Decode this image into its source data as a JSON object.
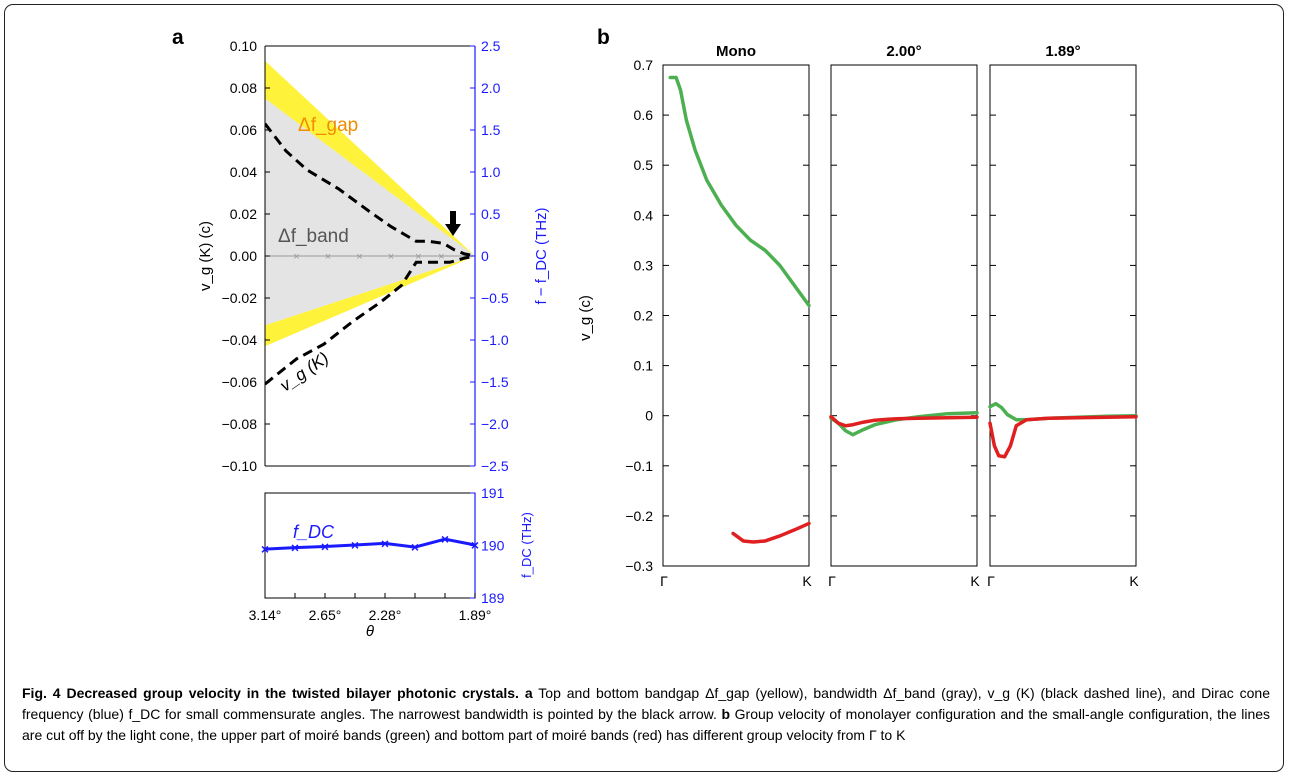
{
  "chart_data": [
    {
      "id": "a-top",
      "type": "line",
      "panel_label": "a",
      "ylabel_left": "v_g (K) (c)",
      "ylabel_right": "f − f_DC (THz)",
      "ylim_left": [
        -0.1,
        0.1
      ],
      "ylim_right": [
        -2.5,
        2.5
      ],
      "yticks_left": [
        "0.10",
        "0.08",
        "0.06",
        "0.04",
        "0.02",
        "0.00",
        "−0.02",
        "−0.04",
        "−0.06",
        "−0.08",
        "−0.10"
      ],
      "yticks_right": [
        "2.5",
        "2.0",
        "1.5",
        "1.0",
        "0.5",
        "0",
        "−0.5",
        "−1.0",
        "−1.5",
        "−2.0",
        "−2.5"
      ],
      "annotations": {
        "gap": "Δf_gap",
        "band": "Δf_band",
        "vg": "v_g (K)"
      },
      "gap_band_upper": {
        "x": [
          0,
          1
        ],
        "y_top": [
          0.093,
          0.0
        ],
        "y_bottom": [
          0.075,
          0.0
        ]
      },
      "gap_band_lower": {
        "x": [
          0,
          1
        ],
        "y_top": [
          -0.033,
          0.0
        ],
        "y_bottom": [
          -0.043,
          0.0
        ]
      },
      "vg_dashed": {
        "x": [
          0,
          0.1,
          0.2,
          0.35,
          0.5,
          0.6,
          0.72,
          0.78,
          0.85,
          0.9,
          0.95,
          1.0
        ],
        "y": [
          0.063,
          0.05,
          0.041,
          0.032,
          0.021,
          0.014,
          0.007,
          0.007,
          0.006,
          0.003,
          0.001,
          0.0
        ]
      },
      "vg_dashed_lower": {
        "x": [
          0,
          0.15,
          0.28,
          0.42,
          0.55,
          0.65,
          0.72,
          0.8,
          0.88,
          0.95,
          1.0
        ],
        "y": [
          -0.061,
          -0.049,
          -0.042,
          -0.031,
          -0.022,
          -0.014,
          -0.003,
          -0.003,
          -0.003,
          -0.001,
          0.0
        ]
      },
      "markers_x": [
        0.15,
        0.3,
        0.45,
        0.6,
        0.73,
        0.84
      ]
    },
    {
      "id": "a-bottom",
      "type": "line",
      "xlabel": "θ",
      "ylabel": "f_DC (THz)",
      "series_label": "f_DC",
      "ylim": [
        189,
        191
      ],
      "yticks": [
        "191",
        "190",
        "189"
      ],
      "xtick_labels": [
        "3.14°",
        "2.65°",
        "2.28°",
        "1.89°"
      ],
      "series": [
        {
          "x": [
            0,
            1,
            2,
            3,
            4,
            5,
            6,
            7
          ],
          "y": [
            189.93,
            189.96,
            189.98,
            190.01,
            190.04,
            189.97,
            190.12,
            190.01
          ]
        }
      ]
    },
    {
      "id": "b",
      "type": "line",
      "panel_label": "b",
      "ylabel": "v_g (c)",
      "ylim": [
        -0.3,
        0.7
      ],
      "yticks": [
        "0.7",
        "0.6",
        "0.5",
        "0.4",
        "0.3",
        "0.2",
        "0.1",
        "0",
        "−0.1",
        "−0.2",
        "−0.3"
      ],
      "xtick_labels": [
        "Γ",
        "K"
      ],
      "subplots": [
        {
          "title": "Mono",
          "series": [
            {
              "color": "#4caf50",
              "x": [
                0.05,
                0.09,
                0.12,
                0.16,
                0.22,
                0.3,
                0.4,
                0.5,
                0.6,
                0.7,
                0.8,
                0.9,
                1.0
              ],
              "y": [
                0.675,
                0.675,
                0.65,
                0.59,
                0.53,
                0.47,
                0.42,
                0.38,
                0.35,
                0.33,
                0.3,
                0.26,
                0.22
              ]
            },
            {
              "color": "#e02020",
              "x": [
                0.48,
                0.55,
                0.62,
                0.7,
                0.8,
                0.9,
                1.0
              ],
              "y": [
                -0.235,
                -0.25,
                -0.252,
                -0.25,
                -0.24,
                -0.228,
                -0.215
              ]
            }
          ]
        },
        {
          "title": "2.00°",
          "series": [
            {
              "color": "#4caf50",
              "x": [
                0,
                0.05,
                0.1,
                0.15,
                0.22,
                0.3,
                0.45,
                0.6,
                0.8,
                1.0
              ],
              "y": [
                -0.005,
                -0.015,
                -0.03,
                -0.038,
                -0.028,
                -0.018,
                -0.008,
                -0.002,
                0.004,
                0.006
              ]
            },
            {
              "color": "#e02020",
              "x": [
                0,
                0.05,
                0.1,
                0.15,
                0.22,
                0.3,
                0.45,
                0.6,
                0.8,
                1.0
              ],
              "y": [
                -0.002,
                -0.015,
                -0.02,
                -0.018,
                -0.013,
                -0.009,
                -0.006,
                -0.005,
                -0.004,
                -0.003
              ]
            }
          ]
        },
        {
          "title": "1.89°",
          "series": [
            {
              "color": "#4caf50",
              "x": [
                0,
                0.04,
                0.08,
                0.12,
                0.18,
                0.25,
                0.4,
                0.6,
                0.8,
                1.0
              ],
              "y": [
                0.018,
                0.024,
                0.016,
                0.002,
                -0.008,
                -0.008,
                -0.005,
                -0.003,
                -0.001,
                0.0
              ]
            },
            {
              "color": "#e02020",
              "x": [
                0,
                0.03,
                0.06,
                0.1,
                0.14,
                0.18,
                0.25,
                0.4,
                0.6,
                0.8,
                1.0
              ],
              "y": [
                -0.015,
                -0.06,
                -0.08,
                -0.082,
                -0.06,
                -0.02,
                -0.008,
                -0.005,
                -0.004,
                -0.003,
                -0.002
              ]
            }
          ]
        }
      ]
    }
  ],
  "caption": {
    "lead": "Fig. 4 Decreased group velocity in the twisted bilayer photonic crystals.",
    "a_label": "a",
    "a_text": "Top and bottom bandgap Δf_gap (yellow), bandwidth Δf_band (gray), v_g (K) (black dashed line), and Dirac cone frequency (blue) f_DC for small commensurate angles. The narrowest bandwidth is pointed by the black arrow.",
    "b_label": "b",
    "b_text": "Group velocity of monolayer configuration and the small-angle configuration, the lines are cut off by the light cone, the upper part of moiré bands (green) and bottom part of moiré bands (red) has different group velocity from Γ to K"
  }
}
